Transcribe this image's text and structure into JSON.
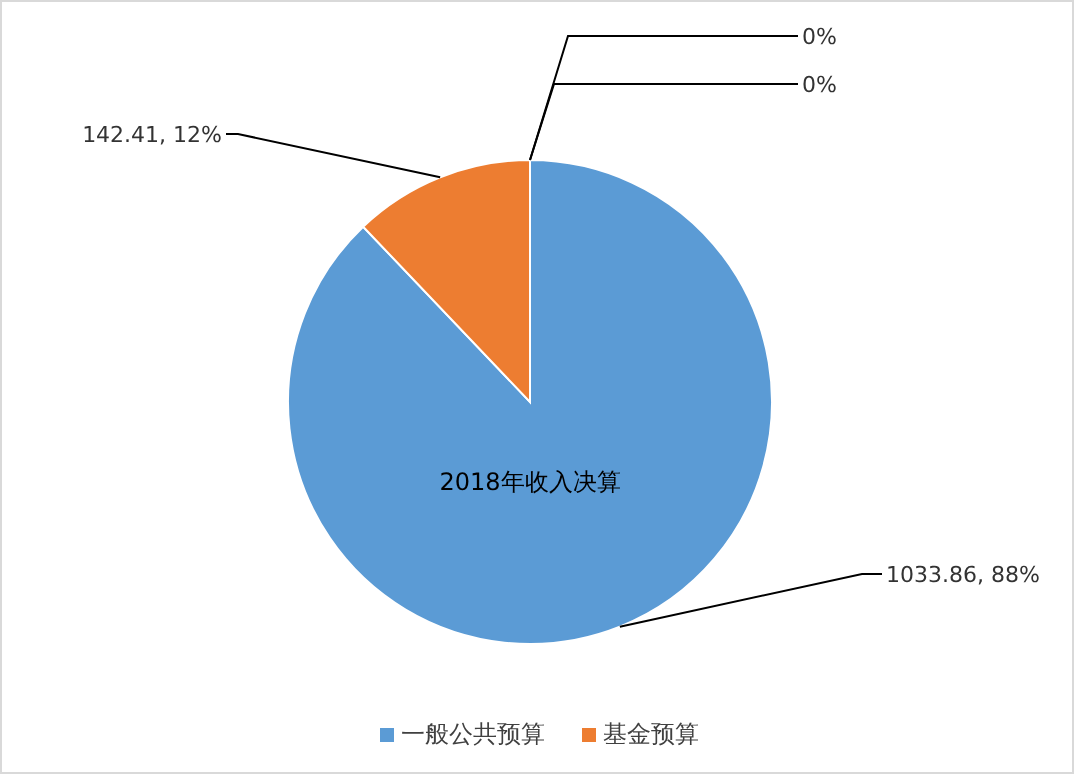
{
  "chart_data": {
    "type": "pie",
    "title": "2018年收入决算",
    "categories": [
      "一般公共预算",
      "基金预算",
      null,
      null
    ],
    "values": [
      1033.86,
      142.41,
      0,
      0
    ],
    "colors": [
      "#5b9bd5",
      "#ed7d31",
      "#a5a5a5",
      "#ffc000"
    ],
    "value_labels": [
      "1033.86, 88%",
      "142.41, 12%",
      "0%",
      "0%"
    ],
    "legend": "bottom"
  }
}
